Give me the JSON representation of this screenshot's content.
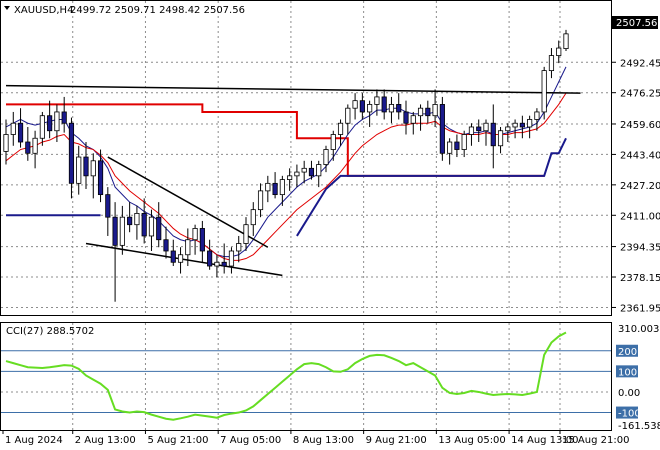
{
  "chart_data": {
    "type": "candlestick",
    "symbol_header": "XAUUSD,H4",
    "ohlc_header": "2499.72 2509.71 2498.42 2507.56",
    "current_price_label": "2507.56",
    "price_axis": {
      "ylim": [
        2359,
        2516
      ],
      "ticks": [
        "2492.45",
        "2476.25",
        "2459.60",
        "2443.40",
        "2427.20",
        "2411.00",
        "2394.35",
        "2378.15",
        "2361.95"
      ]
    },
    "time_axis": {
      "ticks": [
        "1 Aug 2024",
        "2 Aug 13:00",
        "5 Aug 21:00",
        "7 Aug 05:00",
        "8 Aug 13:00",
        "9 Aug 21:00",
        "13 Aug 05:00",
        "14 Aug 13:00",
        "15 Aug 21:00"
      ]
    },
    "candles": [
      [
        2445,
        2462,
        2438,
        2454
      ],
      [
        2454,
        2466,
        2448,
        2460
      ],
      [
        2460,
        2468,
        2447,
        2450
      ],
      [
        2450,
        2458,
        2440,
        2444
      ],
      [
        2444,
        2456,
        2436,
        2452
      ],
      [
        2452,
        2466,
        2448,
        2464
      ],
      [
        2464,
        2472,
        2452,
        2456
      ],
      [
        2456,
        2470,
        2450,
        2466
      ],
      [
        2466,
        2474,
        2455,
        2460
      ],
      [
        2460,
        2463,
        2420,
        2428
      ],
      [
        2428,
        2448,
        2422,
        2442
      ],
      [
        2442,
        2450,
        2425,
        2432
      ],
      [
        2432,
        2444,
        2420,
        2440
      ],
      [
        2440,
        2446,
        2418,
        2422
      ],
      [
        2422,
        2426,
        2400,
        2410
      ],
      [
        2410,
        2418,
        2365,
        2395
      ],
      [
        2395,
        2416,
        2390,
        2410
      ],
      [
        2410,
        2418,
        2402,
        2406
      ],
      [
        2406,
        2416,
        2398,
        2412
      ],
      [
        2412,
        2420,
        2396,
        2400
      ],
      [
        2400,
        2414,
        2392,
        2410
      ],
      [
        2410,
        2418,
        2394,
        2398
      ],
      [
        2398,
        2405,
        2388,
        2392
      ],
      [
        2392,
        2398,
        2384,
        2386
      ],
      [
        2386,
        2394,
        2380,
        2390
      ],
      [
        2390,
        2404,
        2384,
        2398
      ],
      [
        2398,
        2406,
        2390,
        2404
      ],
      [
        2404,
        2408,
        2386,
        2392
      ],
      [
        2392,
        2398,
        2382,
        2384
      ],
      [
        2384,
        2390,
        2378,
        2386
      ],
      [
        2386,
        2396,
        2380,
        2384
      ],
      [
        2384,
        2394,
        2380,
        2392
      ],
      [
        2392,
        2400,
        2386,
        2396
      ],
      [
        2396,
        2410,
        2392,
        2406
      ],
      [
        2406,
        2418,
        2400,
        2414
      ],
      [
        2414,
        2428,
        2410,
        2424
      ],
      [
        2424,
        2432,
        2418,
        2428
      ],
      [
        2428,
        2434,
        2420,
        2422
      ],
      [
        2422,
        2432,
        2416,
        2430
      ],
      [
        2430,
        2436,
        2424,
        2432
      ],
      [
        2432,
        2438,
        2426,
        2434
      ],
      [
        2434,
        2440,
        2428,
        2436
      ],
      [
        2436,
        2440,
        2430,
        2432
      ],
      [
        2432,
        2440,
        2426,
        2438
      ],
      [
        2438,
        2448,
        2434,
        2446
      ],
      [
        2446,
        2456,
        2440,
        2454
      ],
      [
        2454,
        2462,
        2448,
        2460
      ],
      [
        2460,
        2470,
        2454,
        2468
      ],
      [
        2468,
        2476,
        2462,
        2472
      ],
      [
        2472,
        2476,
        2462,
        2466
      ],
      [
        2466,
        2472,
        2458,
        2470
      ],
      [
        2470,
        2478,
        2464,
        2474
      ],
      [
        2474,
        2478,
        2462,
        2466
      ],
      [
        2466,
        2474,
        2460,
        2470
      ],
      [
        2470,
        2476,
        2462,
        2466
      ],
      [
        2466,
        2472,
        2454,
        2460
      ],
      [
        2460,
        2466,
        2454,
        2464
      ],
      [
        2464,
        2470,
        2456,
        2468
      ],
      [
        2468,
        2472,
        2460,
        2464
      ],
      [
        2464,
        2478,
        2458,
        2470
      ],
      [
        2470,
        2474,
        2440,
        2444
      ],
      [
        2444,
        2452,
        2438,
        2450
      ],
      [
        2450,
        2454,
        2442,
        2446
      ],
      [
        2446,
        2456,
        2442,
        2454
      ],
      [
        2454,
        2460,
        2448,
        2458
      ],
      [
        2458,
        2462,
        2450,
        2456
      ],
      [
        2456,
        2462,
        2448,
        2460
      ],
      [
        2460,
        2470,
        2436,
        2448
      ],
      [
        2448,
        2458,
        2444,
        2456
      ],
      [
        2456,
        2460,
        2450,
        2458
      ],
      [
        2458,
        2462,
        2452,
        2460
      ],
      [
        2460,
        2464,
        2452,
        2458
      ],
      [
        2458,
        2464,
        2452,
        2462
      ],
      [
        2462,
        2468,
        2456,
        2466
      ],
      [
        2466,
        2490,
        2462,
        2488
      ],
      [
        2488,
        2500,
        2484,
        2496
      ],
      [
        2496,
        2504,
        2492,
        2500
      ],
      [
        2499.72,
        2509.71,
        2498.42,
        2507.56
      ]
    ],
    "overlays": [
      {
        "color": "#1a1a8c",
        "values": [
          2458,
          2460,
          2462,
          2460,
          2459,
          2460,
          2461,
          2462,
          2462,
          2455,
          2452,
          2448,
          2446,
          2442,
          2436,
          2426,
          2422,
          2418,
          2416,
          2413,
          2411,
          2408,
          2404,
          2400,
          2398,
          2397,
          2398,
          2396,
          2393,
          2390,
          2389,
          2389,
          2390,
          2393,
          2398,
          2404,
          2410,
          2414,
          2418,
          2422,
          2426,
          2429,
          2431,
          2433,
          2437,
          2442,
          2448,
          2454,
          2459,
          2462,
          2464,
          2467,
          2467,
          2468,
          2468,
          2466,
          2465,
          2465,
          2465,
          2466,
          2460,
          2457,
          2455,
          2454,
          2455,
          2455,
          2456,
          2454,
          2454,
          2455,
          2456,
          2457,
          2458,
          2460,
          2466,
          2474,
          2482,
          2490
        ]
      },
      {
        "color": "#e00000",
        "values": [
          2440,
          2443,
          2446,
          2447,
          2448,
          2450,
          2451,
          2453,
          2454,
          2450,
          2449,
          2447,
          2446,
          2443,
          2439,
          2432,
          2428,
          2424,
          2421,
          2418,
          2415,
          2412,
          2408,
          2404,
          2401,
          2399,
          2398,
          2396,
          2393,
          2390,
          2388,
          2387,
          2387,
          2388,
          2390,
          2394,
          2398,
          2402,
          2406,
          2410,
          2414,
          2417,
          2420,
          2423,
          2426,
          2430,
          2434,
          2439,
          2444,
          2448,
          2451,
          2454,
          2456,
          2458,
          2459,
          2459,
          2460,
          2460,
          2460,
          2461,
          2458,
          2456,
          2455,
          2454,
          2454,
          2454,
          2455,
          2454,
          2454,
          2454,
          2455,
          2455,
          2456,
          2457,
          2460,
          2465,
          2470,
          2476
        ]
      }
    ],
    "channel_levels": [
      {
        "color": "#e00000",
        "segments": [
          [
            0,
            2470
          ],
          [
            27,
            2470
          ],
          [
            27,
            2466
          ],
          [
            40,
            2466
          ],
          [
            40,
            2452
          ],
          [
            47,
            2452
          ],
          [
            47,
            2432
          ],
          [
            74,
            2432
          ]
        ]
      },
      {
        "color": "#1a1a8c",
        "segments": [
          [
            0,
            2411
          ],
          [
            13,
            2411
          ]
        ]
      },
      {
        "color": "#1a1a8c",
        "segments": [
          [
            40,
            2400
          ],
          [
            44,
            2425
          ],
          [
            46,
            2432
          ],
          [
            74,
            2432
          ],
          [
            75,
            2444
          ],
          [
            76,
            2444
          ],
          [
            77,
            2452
          ]
        ]
      }
    ],
    "trend_lines": [
      {
        "color": "#000000",
        "from": [
          0,
          2480
        ],
        "to": [
          79,
          2476
        ]
      },
      {
        "color": "#000000",
        "from": [
          14,
          2442
        ],
        "to": [
          36,
          2394
        ]
      },
      {
        "color": "#000000",
        "from": [
          11,
          2396
        ],
        "to": [
          38,
          2379
        ]
      }
    ],
    "cci": {
      "header": "CCI(27) 288.5702",
      "ylim": [
        -175,
        325
      ],
      "ticks": [
        "310.0039",
        "200",
        "100",
        "0.00",
        "-100",
        "-161.5389"
      ],
      "levels": [
        200,
        100,
        -100
      ],
      "values": [
        150,
        140,
        130,
        120,
        118,
        116,
        120,
        125,
        130,
        128,
        112,
        80,
        60,
        40,
        10,
        -85,
        -95,
        -100,
        -95,
        -98,
        -110,
        -120,
        -130,
        -135,
        -128,
        -120,
        -110,
        -115,
        -120,
        -125,
        -112,
        -105,
        -100,
        -90,
        -70,
        -40,
        -10,
        20,
        50,
        80,
        110,
        135,
        140,
        135,
        120,
        100,
        98,
        110,
        140,
        160,
        175,
        180,
        178,
        165,
        150,
        130,
        140,
        120,
        100,
        80,
        20,
        -5,
        -10,
        -5,
        5,
        0,
        -8,
        -15,
        -12,
        -10,
        -12,
        -15,
        -8,
        0,
        180,
        240,
        270,
        288.5702
      ]
    }
  }
}
